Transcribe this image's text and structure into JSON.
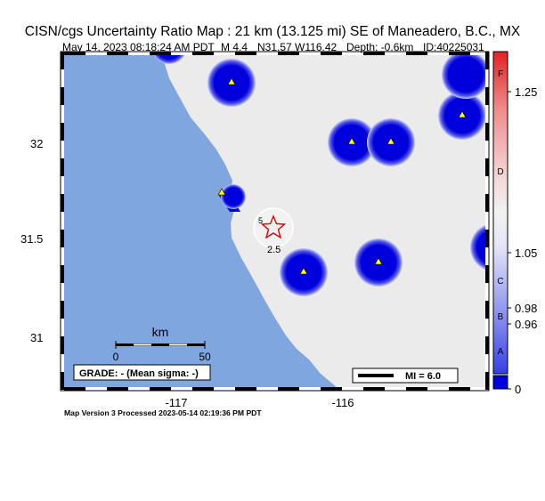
{
  "header": {
    "title": "CISN/cgs Uncertainty Ratio Map : 21 km (13.125 mi) SE of Maneadero, B.C., MX",
    "date": "May 14, 2023 08:18:24 AM PDT",
    "magnitude": "M 4.4",
    "location": "N31.57 W116.42",
    "depth": "Depth: -0.6km",
    "event_id": "ID:40225031"
  },
  "map": {
    "lat_labels": [
      "32",
      "31.5",
      "31"
    ],
    "lon_labels": [
      "-117",
      "-116"
    ],
    "contour_label_top": "5",
    "contour_label": "2.5",
    "scale_unit": "km",
    "scale_ticks": [
      "0",
      "50"
    ],
    "grade": "GRADE: - (Mean sigma: -)",
    "mi_label": "MI = 6.0",
    "colors": {
      "ocean": "#7FA6DE",
      "land": "#EBEBEB",
      "station_halo": "#0000DD",
      "station": "#FFFF00",
      "epicenter": "#E00000"
    }
  },
  "colorbar": {
    "grades": [
      "F",
      "D",
      "C",
      "B",
      "A"
    ],
    "values": [
      "1.25",
      "1.05",
      "0.98",
      "0.96",
      "0"
    ],
    "zero_label": "0"
  },
  "footer": {
    "version": "Map Version 3 Processed 2023-05-14 02:19:36 PM PDT"
  }
}
